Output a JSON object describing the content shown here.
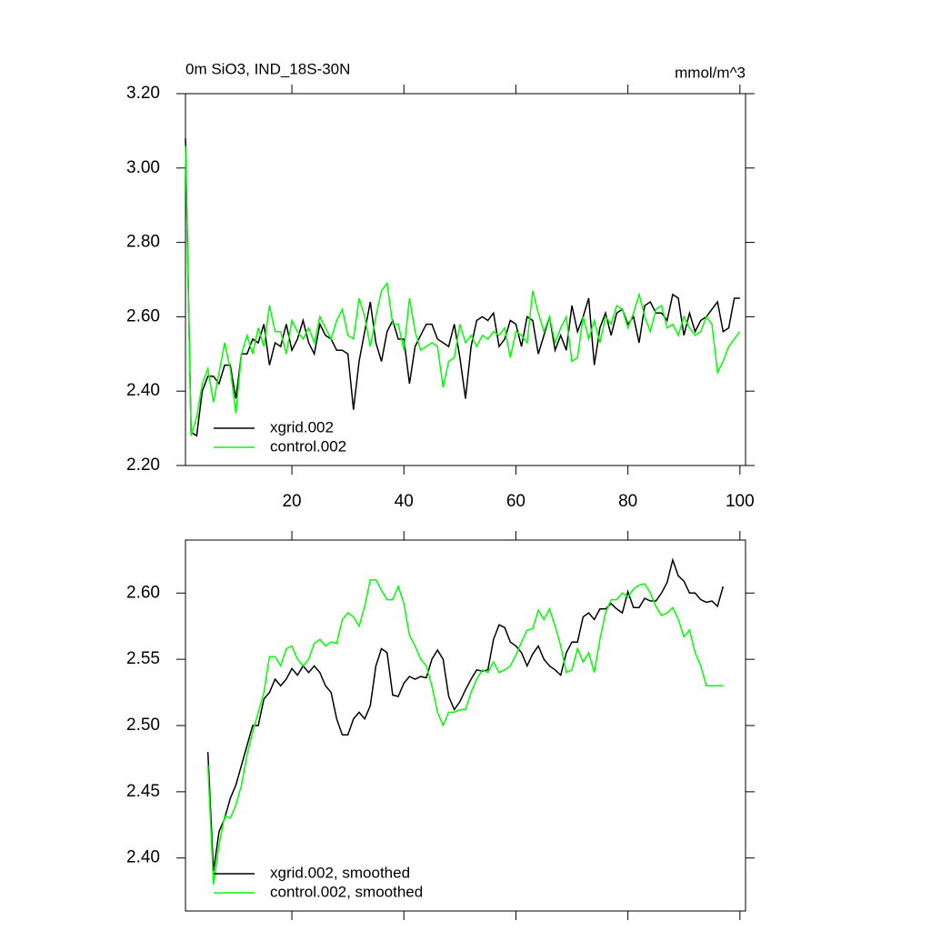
{
  "chart_data": [
    {
      "type": "line",
      "title": "0m SiO3, IND_18S-30N",
      "subtitle": "mmol/m^3",
      "x": [
        1,
        2,
        3,
        4,
        5,
        6,
        7,
        8,
        9,
        10,
        11,
        12,
        13,
        14,
        15,
        16,
        17,
        18,
        19,
        20,
        21,
        22,
        23,
        24,
        25,
        26,
        27,
        28,
        29,
        30,
        31,
        32,
        33,
        34,
        35,
        36,
        37,
        38,
        39,
        40,
        41,
        42,
        43,
        44,
        45,
        46,
        47,
        48,
        49,
        50,
        51,
        52,
        53,
        54,
        55,
        56,
        57,
        58,
        59,
        60,
        61,
        62,
        63,
        64,
        65,
        66,
        67,
        68,
        69,
        70,
        71,
        72,
        73,
        74,
        75,
        76,
        77,
        78,
        79,
        80,
        81,
        82,
        83,
        84,
        85,
        86,
        87,
        88,
        89,
        90,
        91,
        92,
        93,
        94,
        95,
        96,
        97,
        98,
        99,
        100
      ],
      "series": [
        {
          "name": "xgrid.002",
          "color": "#000000",
          "values": [
            3.08,
            2.29,
            2.28,
            2.4,
            2.44,
            2.44,
            2.42,
            2.47,
            2.47,
            2.38,
            2.5,
            2.5,
            2.54,
            2.53,
            2.58,
            2.47,
            2.53,
            2.52,
            2.58,
            2.51,
            2.54,
            2.59,
            2.53,
            2.5,
            2.58,
            2.55,
            2.54,
            2.51,
            2.51,
            2.5,
            2.35,
            2.48,
            2.56,
            2.64,
            2.53,
            2.48,
            2.56,
            2.59,
            2.54,
            2.54,
            2.42,
            2.52,
            2.55,
            2.58,
            2.58,
            2.54,
            2.53,
            2.52,
            2.58,
            2.49,
            2.38,
            2.52,
            2.59,
            2.6,
            2.59,
            2.61,
            2.52,
            2.54,
            2.59,
            2.58,
            2.52,
            2.6,
            2.59,
            2.5,
            2.55,
            2.6,
            2.51,
            2.55,
            2.51,
            2.63,
            2.56,
            2.6,
            2.65,
            2.47,
            2.57,
            2.61,
            2.55,
            2.61,
            2.62,
            2.58,
            2.6,
            2.53,
            2.63,
            2.64,
            2.61,
            2.61,
            2.59,
            2.66,
            2.65,
            2.55,
            2.61,
            2.56,
            2.59,
            2.6,
            2.62,
            2.64,
            2.56,
            2.57,
            2.65,
            2.65
          ]
        },
        {
          "name": "control.002",
          "color": "#00ff00",
          "values": [
            3.06,
            2.28,
            2.33,
            2.42,
            2.46,
            2.37,
            2.45,
            2.53,
            2.46,
            2.34,
            2.5,
            2.55,
            2.5,
            2.57,
            2.52,
            2.63,
            2.56,
            2.56,
            2.5,
            2.59,
            2.56,
            2.54,
            2.57,
            2.53,
            2.6,
            2.57,
            2.54,
            2.59,
            2.62,
            2.55,
            2.54,
            2.65,
            2.6,
            2.52,
            2.6,
            2.67,
            2.69,
            2.58,
            2.58,
            2.51,
            2.65,
            2.56,
            2.51,
            2.52,
            2.53,
            2.52,
            2.41,
            2.48,
            2.49,
            2.58,
            2.53,
            2.55,
            2.52,
            2.55,
            2.54,
            2.56,
            2.55,
            2.57,
            2.49,
            2.56,
            2.55,
            2.53,
            2.67,
            2.61,
            2.56,
            2.6,
            2.53,
            2.57,
            2.6,
            2.48,
            2.49,
            2.6,
            2.54,
            2.59,
            2.53,
            2.6,
            2.58,
            2.63,
            2.62,
            2.57,
            2.61,
            2.66,
            2.6,
            2.56,
            2.62,
            2.63,
            2.57,
            2.58,
            2.55,
            2.6,
            2.57,
            2.55,
            2.56,
            2.6,
            2.58,
            2.45,
            2.48,
            2.52,
            2.54,
            2.56
          ]
        }
      ],
      "xlim": [
        1,
        101
      ],
      "xticks": [
        20,
        40,
        60,
        80,
        100
      ],
      "ylim": [
        2.2,
        3.2
      ],
      "yticks": [
        {
          "value": 2.2,
          "label": "2.20"
        },
        {
          "value": 2.4,
          "label": "2.40"
        },
        {
          "value": 2.6,
          "label": "2.60"
        },
        {
          "value": 2.8,
          "label": "2.80"
        },
        {
          "value": 3.0,
          "label": "3.00"
        },
        {
          "value": 3.2,
          "label": "3.20"
        }
      ],
      "legend": "lower left"
    },
    {
      "type": "line",
      "x": [
        5,
        6,
        7,
        8,
        9,
        10,
        11,
        12,
        13,
        14,
        15,
        16,
        17,
        18,
        19,
        20,
        21,
        22,
        23,
        24,
        25,
        26,
        27,
        28,
        29,
        30,
        31,
        32,
        33,
        34,
        35,
        36,
        37,
        38,
        39,
        40,
        41,
        42,
        43,
        44,
        45,
        46,
        47,
        48,
        49,
        50,
        51,
        52,
        53,
        54,
        55,
        56,
        57,
        58,
        59,
        60,
        61,
        62,
        63,
        64,
        65,
        66,
        67,
        68,
        69,
        70,
        71,
        72,
        73,
        74,
        75,
        76,
        77,
        78,
        79,
        80,
        81,
        82,
        83,
        84,
        85,
        86,
        87,
        88,
        89,
        90,
        91,
        92,
        93,
        94,
        95,
        96,
        97
      ],
      "series": [
        {
          "name": "xgrid.002, smoothed",
          "color": "#000000",
          "values": [
            2.48,
            2.39,
            2.42,
            2.43,
            2.445,
            2.455,
            2.47,
            2.485,
            2.5,
            2.5,
            2.52,
            2.525,
            2.535,
            2.53,
            2.535,
            2.543,
            2.538,
            2.545,
            2.54,
            2.545,
            2.54,
            2.53,
            2.525,
            2.505,
            2.493,
            2.493,
            2.505,
            2.51,
            2.505,
            2.515,
            2.545,
            2.558,
            2.555,
            2.523,
            2.522,
            2.532,
            2.537,
            2.535,
            2.537,
            2.536,
            2.55,
            2.557,
            2.55,
            2.522,
            2.512,
            2.518,
            2.527,
            2.535,
            2.542,
            2.541,
            2.542,
            2.565,
            2.576,
            2.574,
            2.563,
            2.56,
            2.555,
            2.545,
            2.554,
            2.56,
            2.55,
            2.545,
            2.542,
            2.538,
            2.555,
            2.563,
            2.563,
            2.582,
            2.585,
            2.58,
            2.588,
            2.588,
            2.592,
            2.588,
            2.585,
            2.601,
            2.589,
            2.589,
            2.596,
            2.594,
            2.594,
            2.6,
            2.608,
            2.625,
            2.613,
            2.609,
            2.6,
            2.6,
            2.595,
            2.593,
            2.594,
            2.59,
            2.605
          ]
        },
        {
          "name": "control.002, smoothed",
          "color": "#00ff00",
          "values": [
            2.47,
            2.38,
            2.41,
            2.432,
            2.43,
            2.44,
            2.455,
            2.478,
            2.495,
            2.51,
            2.525,
            2.552,
            2.552,
            2.545,
            2.558,
            2.56,
            2.55,
            2.545,
            2.55,
            2.562,
            2.565,
            2.56,
            2.563,
            2.562,
            2.58,
            2.585,
            2.582,
            2.575,
            2.59,
            2.61,
            2.61,
            2.602,
            2.595,
            2.595,
            2.605,
            2.592,
            2.568,
            2.56,
            2.55,
            2.545,
            2.53,
            2.51,
            2.5,
            2.51,
            2.51,
            2.512,
            2.512,
            2.525,
            2.535,
            2.542,
            2.54,
            2.548,
            2.54,
            2.542,
            2.545,
            2.553,
            2.563,
            2.572,
            2.573,
            2.587,
            2.58,
            2.588,
            2.575,
            2.56,
            2.54,
            2.542,
            2.558,
            2.548,
            2.555,
            2.54,
            2.565,
            2.585,
            2.595,
            2.595,
            2.6,
            2.597,
            2.603,
            2.606,
            2.607,
            2.6,
            2.59,
            2.583,
            2.585,
            2.589,
            2.58,
            2.567,
            2.572,
            2.555,
            2.545,
            2.53,
            2.53,
            2.53,
            2.53
          ]
        }
      ],
      "xlim": [
        1,
        101
      ],
      "xticks": [
        20,
        40,
        60,
        80,
        100
      ],
      "ylim": [
        2.36,
        2.64
      ],
      "yticks": [
        {
          "value": 2.4,
          "label": "2.40"
        },
        {
          "value": 2.45,
          "label": "2.45"
        },
        {
          "value": 2.5,
          "label": "2.50"
        },
        {
          "value": 2.55,
          "label": "2.55"
        },
        {
          "value": 2.6,
          "label": "2.60"
        }
      ],
      "legend": "lower left"
    }
  ]
}
